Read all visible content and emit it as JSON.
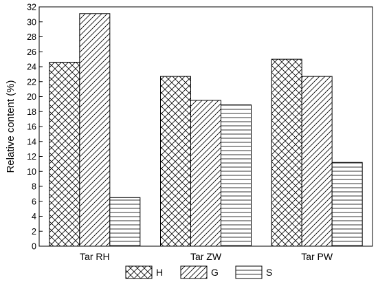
{
  "chart_data": {
    "type": "bar",
    "title": "",
    "xlabel": "",
    "ylabel": "Relative content (%)",
    "ylim": [
      0,
      32
    ],
    "yticks": [
      0,
      2,
      4,
      6,
      8,
      10,
      12,
      14,
      16,
      18,
      20,
      22,
      24,
      26,
      28,
      30,
      32
    ],
    "categories": [
      "Tar RH",
      "Tar ZW",
      "Tar PW"
    ],
    "series": [
      {
        "name": "H",
        "pattern": "crosshatch",
        "values": [
          24.6,
          22.7,
          25.0
        ]
      },
      {
        "name": "G",
        "pattern": "diagonal",
        "values": [
          31.1,
          19.5,
          22.7
        ]
      },
      {
        "name": "S",
        "pattern": "horizontal",
        "values": [
          6.5,
          18.9,
          11.2
        ]
      }
    ],
    "legend_position": "bottom",
    "grid": false,
    "colors": {
      "stroke": "#000000",
      "background": "#ffffff"
    }
  }
}
